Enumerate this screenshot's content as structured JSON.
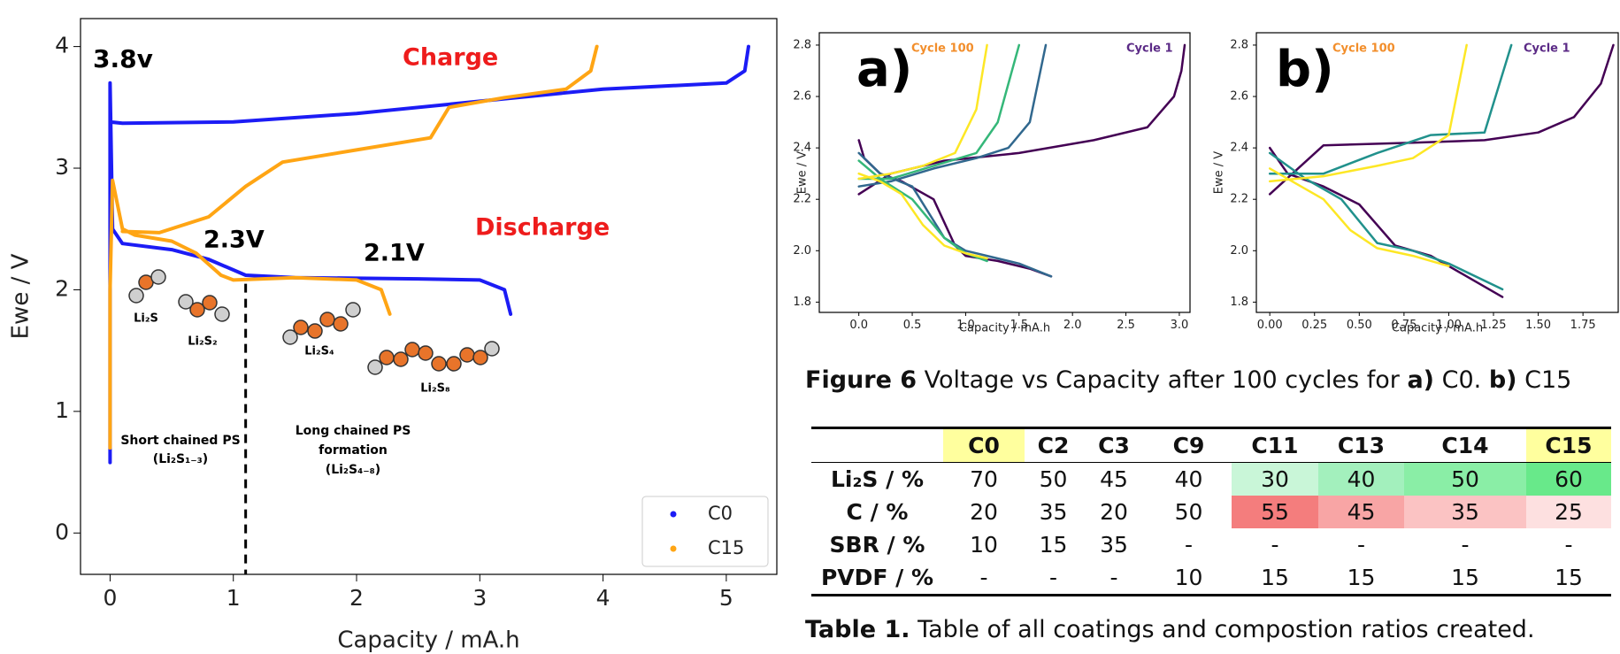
{
  "chart_data": [
    {
      "type": "line",
      "x_label": "Capacity / mA.h",
      "y_label": "Ewe / V",
      "xlim": [
        -0.24,
        5.41
      ],
      "ylim": [
        -0.34,
        4.23
      ],
      "xticks": [
        0,
        1,
        2,
        3,
        4,
        5
      ],
      "yticks": [
        0,
        1,
        2,
        3,
        4
      ],
      "legend": "lower right",
      "vline": 1.1,
      "series": [
        {
          "name": "C0",
          "color": "#1c1cf5",
          "x": [
            0,
            0,
            0,
            0,
            0.02,
            0.1,
            0.5,
            0.8,
            1.1,
            1.5,
            2.5,
            3.0,
            3.2,
            3.25,
            null,
            0,
            0.1,
            1,
            2,
            3,
            4,
            5,
            5.15,
            5.18
          ],
          "values": [
            0.58,
            1.5,
            2.6,
            3.7,
            2.5,
            2.38,
            2.33,
            2.25,
            2.12,
            2.1,
            2.09,
            2.08,
            2.0,
            1.8,
            null,
            3.38,
            3.37,
            3.38,
            3.45,
            3.55,
            3.65,
            3.7,
            3.8,
            4.0
          ]
        },
        {
          "name": "C15",
          "color": "#ffa514",
          "x": [
            0,
            0,
            0.02,
            0.1,
            0.2,
            0.5,
            0.7,
            0.9,
            1.0,
            1.5,
            2.0,
            2.2,
            2.27,
            null,
            0.1,
            0.4,
            0.8,
            1.1,
            1.4,
            2.0,
            2.6,
            2.75,
            3.2,
            3.7,
            3.9,
            3.95
          ],
          "values": [
            0.7,
            2.0,
            2.9,
            2.5,
            2.45,
            2.4,
            2.3,
            2.12,
            2.08,
            2.1,
            2.08,
            2.0,
            1.8,
            null,
            2.48,
            2.47,
            2.6,
            2.85,
            3.05,
            3.15,
            3.25,
            3.5,
            3.58,
            3.65,
            3.8,
            4.0
          ]
        }
      ],
      "annotations": [
        {
          "text": "3.8v",
          "color": "#000000"
        },
        {
          "text": "Charge",
          "color": "#ee1c1c"
        },
        {
          "text": "Discharge",
          "color": "#ee1c1c"
        },
        {
          "text": "2.3V",
          "color": "#000000"
        },
        {
          "text": "2.1V",
          "color": "#000000"
        },
        {
          "text": "Li₂S",
          "color": "#000000"
        },
        {
          "text": "Li₂S₂",
          "color": "#000000"
        },
        {
          "text": "Li₂S₄",
          "color": "#000000"
        },
        {
          "text": "Li₂S₈",
          "color": "#000000"
        },
        {
          "text": "Short chained PS",
          "color": "#000000"
        },
        {
          "text": "(Li₂S₁₋₃)",
          "color": "#000000"
        },
        {
          "text": "Long chained PS",
          "color": "#000000"
        },
        {
          "text": "formation",
          "color": "#000000"
        },
        {
          "text": "(Li₂S₄₋₈)",
          "color": "#000000"
        }
      ]
    },
    {
      "type": "line",
      "x_label": "Capacity / mA.h",
      "y_label": "Ewe / V",
      "xlim": [
        -0.37,
        3.1
      ],
      "ylim": [
        1.76,
        2.848
      ],
      "xticks": [
        {
          "value": 0,
          "label": "0.0"
        },
        0.5,
        {
          "value": 1,
          "label": "1.0"
        },
        1.5,
        {
          "value": 2,
          "label": "2.0"
        },
        2.5,
        {
          "value": 3,
          "label": "3.0"
        }
      ],
      "yticks": [
        1.8,
        {
          "value": 2,
          "label": "2.0"
        },
        2.2,
        2.4,
        2.6,
        2.8
      ],
      "annotations": [
        {
          "text": "a)",
          "color": "#000000"
        },
        {
          "text": "Cycle 100",
          "color": "#f28e2b"
        },
        {
          "text": "Cycle 1",
          "color": "#5b2a86"
        }
      ],
      "series": [
        {
          "color": "#440154",
          "x": [
            0,
            0.05,
            0.2,
            0.4,
            0.7,
            0.9,
            1.0,
            1.3,
            1.6,
            1.8,
            null,
            0,
            0.3,
            0.8,
            1.5,
            2.2,
            2.7,
            2.95,
            3.02,
            3.05
          ],
          "values": [
            2.43,
            2.36,
            2.3,
            2.27,
            2.2,
            2.02,
            1.98,
            1.96,
            1.93,
            1.9,
            null,
            2.22,
            2.3,
            2.35,
            2.38,
            2.43,
            2.48,
            2.6,
            2.7,
            2.8
          ]
        },
        {
          "color": "#31688e",
          "x": [
            0,
            0.2,
            0.5,
            0.8,
            1.0,
            1.2,
            1.5,
            1.8,
            null,
            0,
            0.3,
            0.7,
            1.1,
            1.4,
            1.6,
            1.75
          ],
          "values": [
            2.38,
            2.3,
            2.25,
            2.05,
            2.0,
            1.98,
            1.95,
            1.9,
            null,
            2.25,
            2.27,
            2.32,
            2.36,
            2.4,
            2.5,
            2.8
          ]
        },
        {
          "color": "#35b779",
          "x": [
            0,
            0.2,
            0.5,
            0.8,
            1.0,
            1.2,
            null,
            0,
            0.3,
            0.7,
            1.1,
            1.3,
            1.5
          ],
          "values": [
            2.35,
            2.28,
            2.2,
            2.05,
            1.99,
            1.96,
            null,
            2.28,
            2.28,
            2.33,
            2.38,
            2.5,
            2.8
          ]
        },
        {
          "color": "#fde725",
          "x": [
            0,
            0.2,
            0.4,
            0.6,
            0.8,
            1.0,
            1.2,
            null,
            0,
            0.3,
            0.6,
            0.9,
            1.1,
            1.2
          ],
          "values": [
            2.3,
            2.27,
            2.22,
            2.1,
            2.02,
            1.99,
            1.97,
            null,
            2.28,
            2.3,
            2.33,
            2.38,
            2.55,
            2.8
          ]
        }
      ]
    },
    {
      "type": "line",
      "x_label": "Capacity / mA.h",
      "y_label": "Ewe / V",
      "xlim": [
        -0.075,
        1.947
      ],
      "ylim": [
        1.76,
        2.848
      ],
      "xticks": [
        {
          "value": 0,
          "label": "0.00"
        },
        0.25,
        {
          "value": 0.5,
          "label": "0.50"
        },
        0.75,
        {
          "value": 1,
          "label": "1.00"
        },
        1.25,
        {
          "value": 1.5,
          "label": "1.50"
        },
        1.75
      ],
      "yticks": [
        1.8,
        {
          "value": 2,
          "label": "2.0"
        },
        2.2,
        2.4,
        2.6,
        2.8
      ],
      "annotations": [
        {
          "text": "b)",
          "color": "#000000"
        },
        {
          "text": "Cycle 100",
          "color": "#f28e2b"
        },
        {
          "text": "Cycle 1",
          "color": "#5b2a86"
        }
      ],
      "series": [
        {
          "color": "#440154",
          "x": [
            0,
            0.1,
            0.3,
            0.5,
            0.7,
            0.9,
            1.1,
            1.3,
            null,
            0,
            0.3,
            0.8,
            1.2,
            1.5,
            1.7,
            1.85,
            1.92
          ],
          "values": [
            2.4,
            2.3,
            2.25,
            2.18,
            2.02,
            1.98,
            1.9,
            1.82,
            null,
            2.22,
            2.41,
            2.42,
            2.43,
            2.46,
            2.52,
            2.65,
            2.8
          ]
        },
        {
          "color": "#21918c",
          "x": [
            0,
            0.2,
            0.4,
            0.6,
            0.8,
            1.0,
            1.3,
            null,
            0,
            0.3,
            0.6,
            0.9,
            1.2,
            1.35
          ],
          "values": [
            2.38,
            2.28,
            2.2,
            2.03,
            2.0,
            1.95,
            1.85,
            null,
            2.3,
            2.3,
            2.38,
            2.45,
            2.46,
            2.8
          ]
        },
        {
          "color": "#fde725",
          "x": [
            0,
            0.15,
            0.3,
            0.45,
            0.6,
            0.8,
            1.0,
            null,
            0,
            0.3,
            0.6,
            0.8,
            1.0,
            1.1
          ],
          "values": [
            2.32,
            2.26,
            2.2,
            2.08,
            2.01,
            1.98,
            1.94,
            null,
            2.27,
            2.29,
            2.33,
            2.36,
            2.45,
            2.8
          ]
        }
      ]
    }
  ],
  "figure_caption": [
    {
      "text": "Figure 6",
      "bold": true
    },
    {
      "text": "Voltage vs Capacity after 100 cycles for"
    },
    {
      "text": "a)",
      "bold": true
    },
    {
      "text": "C0."
    },
    {
      "text": "b)",
      "bold": true
    },
    {
      "text": "C15"
    }
  ],
  "table": {
    "columns": [
      null,
      "C0",
      "C2",
      "C3",
      "C9",
      "C11",
      "C13",
      "C14",
      "C15"
    ],
    "column_colors": [
      null,
      "#ffff9e",
      null,
      null,
      null,
      null,
      null,
      null,
      "#ffff9e"
    ],
    "rows": [
      {
        "label": "Li₂S / %",
        "cells": [
          70,
          50,
          45,
          40,
          30,
          40,
          50,
          60
        ],
        "colors": [
          null,
          null,
          null,
          null,
          "#c9f6d8",
          "#a3f0bd",
          "#8aee a6",
          "#68e98a"
        ]
      },
      {
        "label": "C / %",
        "cells": [
          20,
          35,
          20,
          50,
          55,
          45,
          35,
          25
        ],
        "colors": [
          null,
          null,
          null,
          null,
          "#f47d7d",
          "#f8a5a5",
          "#fbc3c3",
          "#fde0e0"
        ]
      },
      {
        "label": "SBR / %",
        "cells": [
          10,
          15,
          35,
          "-",
          "-",
          "-",
          "-",
          "-"
        ],
        "colors": [
          null,
          null,
          null,
          null,
          null,
          null,
          null,
          null
        ]
      },
      {
        "label": "PVDF / %",
        "cells": [
          "-",
          "-",
          "-",
          10,
          15,
          15,
          15,
          15
        ],
        "colors": [
          null,
          null,
          null,
          null,
          null,
          null,
          null,
          null
        ]
      }
    ]
  },
  "table_caption": [
    {
      "text": "Table 1.",
      "bold": true
    },
    {
      "text": "Table of all coatings and compostion ratios created."
    }
  ]
}
